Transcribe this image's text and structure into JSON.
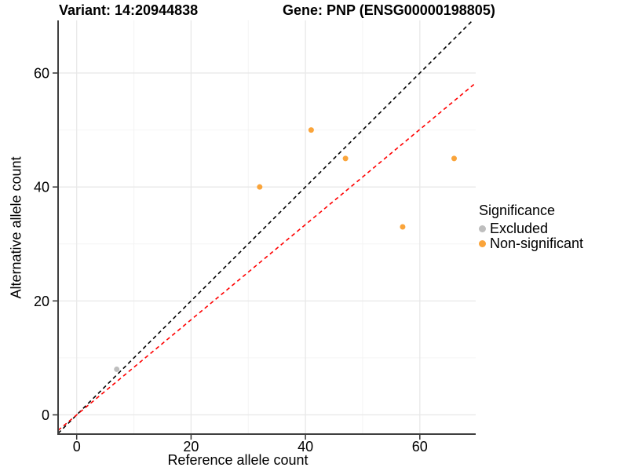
{
  "title": {
    "variant": "Variant: 14:20944838",
    "gene": "Gene: PNP (ENSG00000198805)"
  },
  "axes": {
    "x": {
      "label": "Reference allele count",
      "tick_labels": [
        "0",
        "20",
        "40",
        "60"
      ],
      "tick_values": [
        0,
        20,
        40,
        60
      ],
      "minor_values": [
        10,
        30,
        50
      ]
    },
    "y": {
      "label": "Alternative allele count",
      "tick_labels": [
        "0",
        "20",
        "40",
        "60"
      ],
      "tick_values": [
        0,
        20,
        40,
        60
      ],
      "minor_values": [
        10,
        30,
        50
      ]
    }
  },
  "legend": {
    "title": "Significance",
    "items": [
      {
        "label": "Excluded",
        "color": "#BEBEBE"
      },
      {
        "label": "Non-significant",
        "color": "#FAA43A"
      }
    ]
  },
  "chart_data": {
    "type": "scatter",
    "title": "Variant: 14:20944838 — Gene: PNP (ENSG00000198805)",
    "xlabel": "Reference allele count",
    "ylabel": "Alternative allele count",
    "xlim": [
      -3.3,
      69.8
    ],
    "ylim": [
      -3.4,
      69.2
    ],
    "grid": true,
    "legend_position": "right",
    "legend_title": "Significance",
    "series": [
      {
        "name": "Excluded",
        "color": "#BEBEBE",
        "points": [
          {
            "x": 7,
            "y": 8
          }
        ]
      },
      {
        "name": "Non-significant",
        "color": "#FAA43A",
        "points": [
          {
            "x": 32,
            "y": 40
          },
          {
            "x": 41,
            "y": 50
          },
          {
            "x": 47,
            "y": 45
          },
          {
            "x": 57,
            "y": 33
          },
          {
            "x": 66,
            "y": 45
          }
        ]
      }
    ],
    "reference_lines": [
      {
        "name": "identity-line",
        "slope": 1,
        "intercept": 0,
        "color": "#000000",
        "style": "dashed"
      },
      {
        "name": "fitted-line",
        "slope": 0.835,
        "intercept": 0,
        "color": "#FF0000",
        "style": "dashed"
      }
    ]
  },
  "colors": {
    "grid_major": "#E8E8E8",
    "grid_minor": "#F4F4F4",
    "axis_line": "#3F3F3F",
    "tick": "#333333"
  }
}
